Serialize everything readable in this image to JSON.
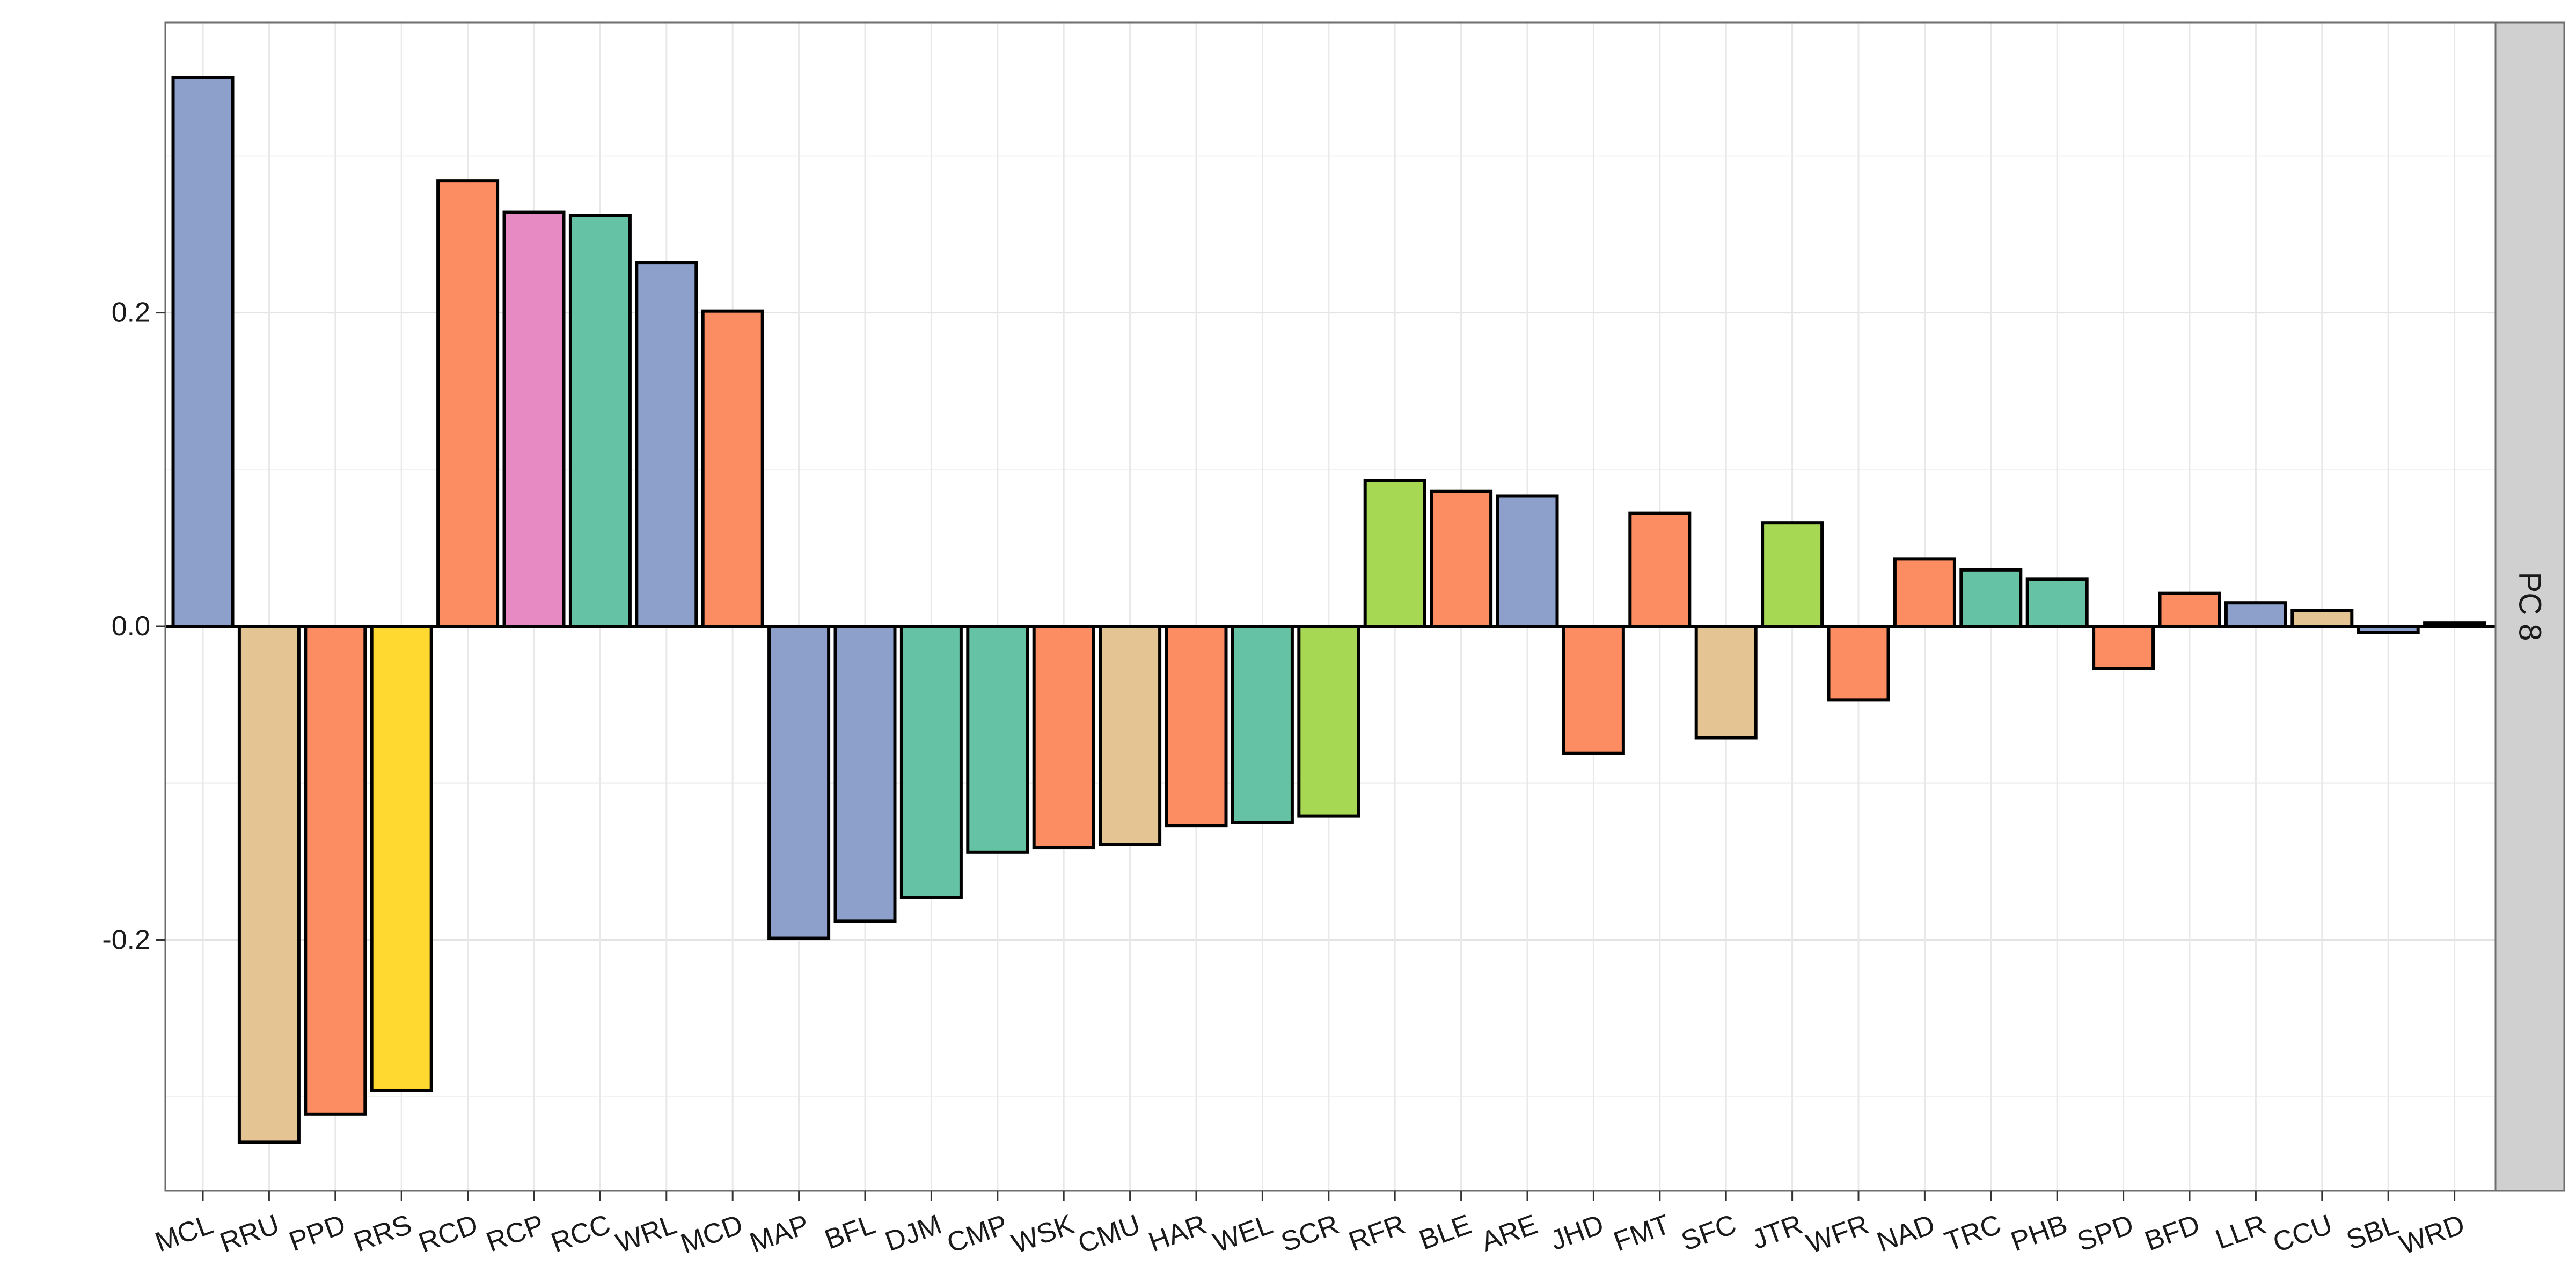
{
  "chart_data": {
    "type": "bar",
    "facet_label": "PC 8",
    "categories": [
      "MCL",
      "RRU",
      "PPD",
      "RRS",
      "RCD",
      "RCP",
      "RCC",
      "WRL",
      "MCD",
      "MAP",
      "BFL",
      "DJM",
      "CMP",
      "WSK",
      "CMU",
      "HAR",
      "WEL",
      "SCR",
      "RFR",
      "BLE",
      "ARE",
      "JHD",
      "FMT",
      "SFC",
      "JTR",
      "WFR",
      "NAD",
      "TRC",
      "PHB",
      "SPD",
      "BFD",
      "LLR",
      "CCU",
      "SBL",
      "WRD"
    ],
    "values": [
      0.35,
      -0.329,
      -0.311,
      -0.296,
      0.284,
      0.264,
      0.262,
      0.232,
      0.201,
      -0.199,
      -0.188,
      -0.173,
      -0.144,
      -0.141,
      -0.139,
      -0.127,
      -0.125,
      -0.121,
      0.093,
      0.086,
      0.083,
      -0.081,
      0.072,
      -0.071,
      0.066,
      -0.047,
      0.043,
      0.036,
      0.03,
      -0.027,
      0.021,
      0.015,
      0.01,
      -0.004,
      0.002
    ],
    "colors": [
      "#8da0cb",
      "#e5c494",
      "#fc8d62",
      "#ffd92f",
      "#fc8d62",
      "#e78ac3",
      "#66c2a5",
      "#8da0cb",
      "#fc8d62",
      "#8da0cb",
      "#8da0cb",
      "#66c2a5",
      "#66c2a5",
      "#fc8d62",
      "#e5c494",
      "#fc8d62",
      "#66c2a5",
      "#a6d854",
      "#a6d854",
      "#fc8d62",
      "#8da0cb",
      "#fc8d62",
      "#fc8d62",
      "#e5c494",
      "#a6d854",
      "#fc8d62",
      "#fc8d62",
      "#66c2a5",
      "#66c2a5",
      "#fc8d62",
      "#fc8d62",
      "#8da0cb",
      "#e5c494",
      "#8da0cb",
      "#8da0cb"
    ],
    "ylim": [
      -0.36,
      0.385
    ],
    "y_ticks": [
      -0.2,
      0.0,
      0.2
    ],
    "y_tick_labels": [
      "-0.2",
      "0.0",
      "0.2"
    ],
    "title": "",
    "xlabel": "",
    "ylabel": "",
    "grid": true,
    "legend": "none"
  }
}
